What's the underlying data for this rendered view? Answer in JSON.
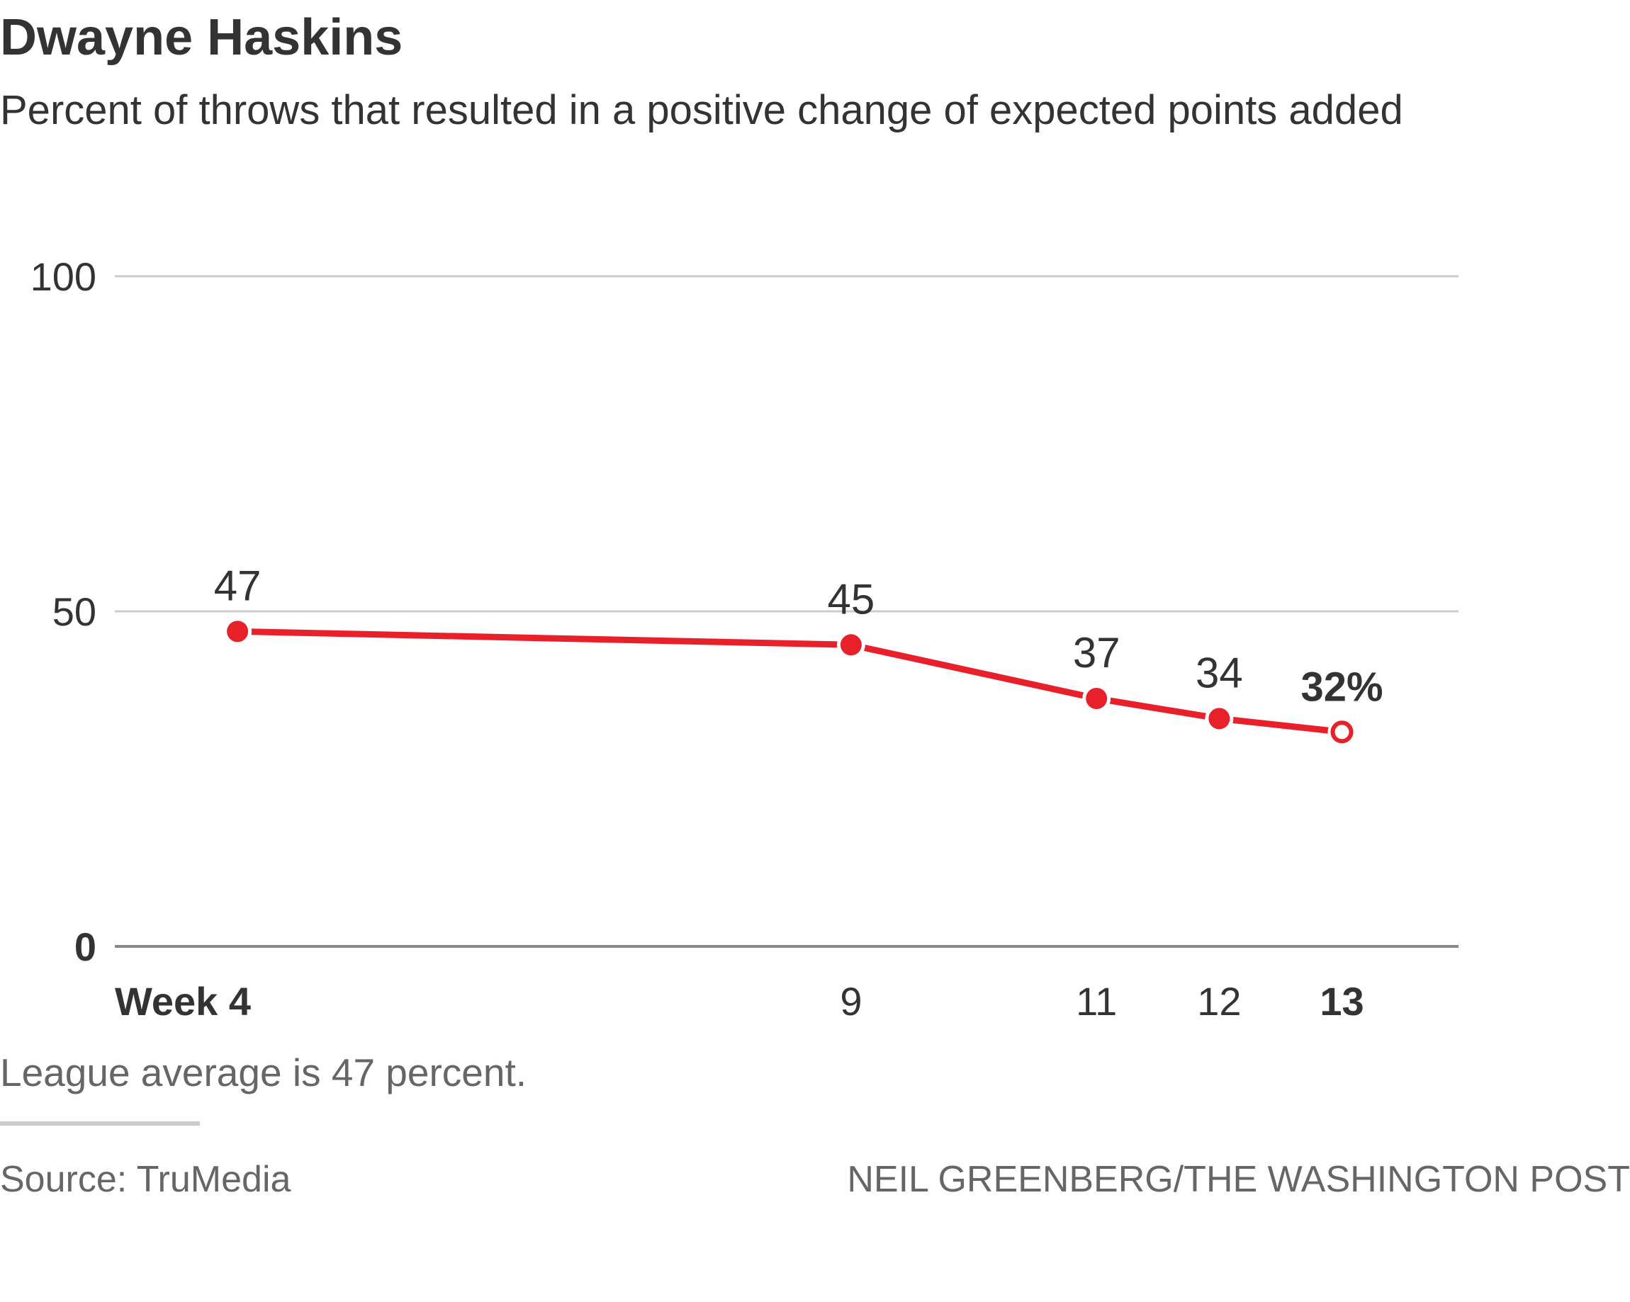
{
  "title": "Dwayne Haskins",
  "subtitle": "Percent of throws that resulted in a positive change of expected points added",
  "note": "League average is 47 percent.",
  "source": "Source: TruMedia",
  "credit": "NEIL GREENBERG/THE WASHINGTON POST",
  "colors": {
    "line": "#e8202a",
    "grid": "#cccccc",
    "baseline": "#888888",
    "text": "#333333",
    "muted": "#666666"
  },
  "chart_data": {
    "type": "line",
    "x": [
      4,
      9,
      11,
      12,
      13
    ],
    "x_tick_labels": [
      "Week 4",
      "9",
      "11",
      "12",
      "13"
    ],
    "bold_x_ticks": [
      "Week 4",
      "13"
    ],
    "y_ticks": [
      0,
      50,
      100
    ],
    "y_tick_labels": [
      "0",
      "50",
      "100"
    ],
    "ylim": [
      0,
      100
    ],
    "grid": true,
    "series": [
      {
        "values": [
          47,
          45,
          37,
          34,
          32
        ],
        "point_labels": [
          "47",
          "45",
          "37",
          "34",
          "32%"
        ],
        "last_point_hollow": true
      }
    ]
  }
}
